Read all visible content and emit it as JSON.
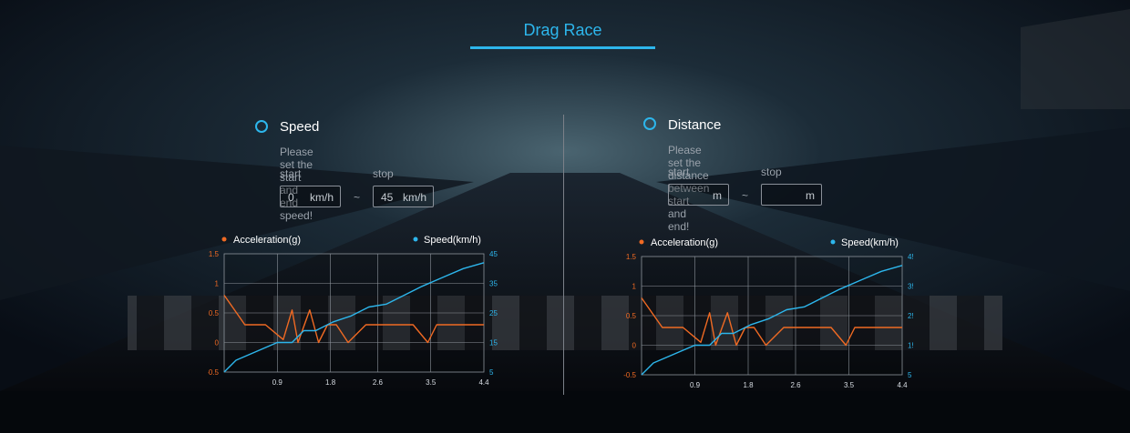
{
  "tab": {
    "label": "Drag Race"
  },
  "speed": {
    "title": "Speed",
    "hint": "Please set the start and end speed!",
    "start_label": "start",
    "stop_label": "stop",
    "start_value": "0",
    "stop_value": "45",
    "unit": "km/h",
    "separator": "~"
  },
  "distance": {
    "title": "Distance",
    "hint": "Please set the distance between start and end!",
    "start_label": "start",
    "stop_label": "stop",
    "start_value": "",
    "stop_value": "",
    "unit": "m",
    "separator": "~"
  },
  "colors": {
    "accent": "#2db6ec",
    "acceleration": "#f06a23",
    "speed_line": "#2db6ec"
  },
  "chart_data": [
    {
      "type": "line",
      "title": "",
      "legend": [
        "Acceleration(g)",
        "Speed(km/h)"
      ],
      "legend_placement": "top",
      "x_ticks": [
        "0.9",
        "1.8",
        "2.6",
        "3.5",
        "4.4"
      ],
      "x_tick_values": [
        0.9,
        1.8,
        2.6,
        3.5,
        4.4
      ],
      "xlim": [
        0,
        4.4
      ],
      "y_left_ticks": [
        "-0.5",
        "0",
        "0.5",
        "1",
        "1.5"
      ],
      "y_left_lim": [
        -0.5,
        1.5
      ],
      "y_right_ticks": [
        "5",
        "15",
        "25",
        "35",
        "45"
      ],
      "y_right_lim": [
        5,
        45
      ],
      "grid": true,
      "series": [
        {
          "name": "Acceleration(g)",
          "axis": "left",
          "x": [
            0,
            0.35,
            0.7,
            1.0,
            1.15,
            1.25,
            1.45,
            1.6,
            1.75,
            1.9,
            2.1,
            2.4,
            2.6,
            2.8,
            3.0,
            3.2,
            3.45,
            3.6,
            4.4
          ],
          "values": [
            0.8,
            0.3,
            0.3,
            0.05,
            0.55,
            0.0,
            0.55,
            0.0,
            0.3,
            0.3,
            0.0,
            0.3,
            0.3,
            0.3,
            0.3,
            0.3,
            0.0,
            0.3,
            0.3
          ]
        },
        {
          "name": "Speed(km/h)",
          "axis": "right",
          "x": [
            0,
            0.2,
            0.9,
            1.15,
            1.35,
            1.55,
            1.85,
            2.15,
            2.45,
            2.75,
            3.05,
            3.35,
            3.7,
            4.05,
            4.4
          ],
          "values": [
            5,
            9,
            15,
            15,
            19,
            19,
            22,
            24,
            27,
            28,
            31,
            34,
            37,
            40,
            42
          ]
        }
      ]
    },
    {
      "type": "line",
      "title": "",
      "legend": [
        "Acceleration(g)",
        "Speed(km/h)"
      ],
      "legend_placement": "top",
      "x_ticks": [
        "0.9",
        "1.8",
        "2.6",
        "3.5",
        "4.4"
      ],
      "x_tick_values": [
        0.9,
        1.8,
        2.6,
        3.5,
        4.4
      ],
      "xlim": [
        0,
        4.4
      ],
      "y_left_ticks": [
        "-0.5",
        "0",
        "0.5",
        "1",
        "1.5"
      ],
      "y_left_lim": [
        -0.5,
        1.5
      ],
      "y_right_ticks": [
        "5",
        "15",
        "25",
        "35",
        "45"
      ],
      "y_right_lim": [
        5,
        45
      ],
      "grid": true,
      "series": [
        {
          "name": "Acceleration(g)",
          "axis": "left",
          "x": [
            0,
            0.35,
            0.7,
            1.0,
            1.15,
            1.25,
            1.45,
            1.6,
            1.75,
            1.9,
            2.1,
            2.4,
            2.6,
            2.8,
            3.0,
            3.2,
            3.45,
            3.6,
            4.4
          ],
          "values": [
            0.8,
            0.3,
            0.3,
            0.05,
            0.55,
            0.0,
            0.55,
            0.0,
            0.3,
            0.3,
            0.0,
            0.3,
            0.3,
            0.3,
            0.3,
            0.3,
            0.0,
            0.3,
            0.3
          ]
        },
        {
          "name": "Speed(km/h)",
          "axis": "right",
          "x": [
            0,
            0.2,
            0.9,
            1.15,
            1.35,
            1.55,
            1.85,
            2.15,
            2.45,
            2.75,
            3.05,
            3.35,
            3.7,
            4.05,
            4.4
          ],
          "values": [
            5,
            9,
            15,
            15,
            19,
            19,
            22,
            24,
            27,
            28,
            31,
            34,
            37,
            40,
            42
          ]
        }
      ]
    }
  ]
}
